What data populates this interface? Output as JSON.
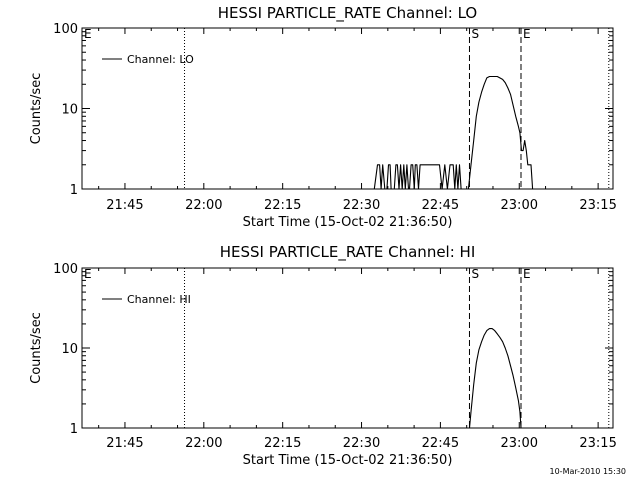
{
  "footer": {
    "timestamp": "10-Mar-2010 15:30"
  },
  "chart_data": [
    {
      "type": "line",
      "title": "HESSI PARTICLE_RATE Channel: LO",
      "xlabel": "Start Time (15-Oct-02 21:36:50)",
      "ylabel": "Counts/sec",
      "x_unit": "minutes since 21:36:50",
      "xlim": [
        0,
        101
      ],
      "ylim": [
        1,
        100
      ],
      "y_scale": "log",
      "x_ticks": [
        {
          "v": 8.17,
          "label": "21:45"
        },
        {
          "v": 23.17,
          "label": "22:00"
        },
        {
          "v": 38.17,
          "label": "22:15"
        },
        {
          "v": 53.17,
          "label": "22:30"
        },
        {
          "v": 68.17,
          "label": "22:45"
        },
        {
          "v": 83.17,
          "label": "23:00"
        },
        {
          "v": 98.17,
          "label": "23:15"
        }
      ],
      "y_ticks": [
        {
          "v": 1,
          "label": "1"
        },
        {
          "v": 10,
          "label": "10"
        },
        {
          "v": 100,
          "label": "100"
        }
      ],
      "legend": {
        "entries": [
          "Channel: LO"
        ],
        "placement": "top-left"
      },
      "markers": [
        {
          "label": "E",
          "x": 0,
          "style": "none"
        },
        {
          "label": "",
          "x": 19.5,
          "style": "dotted"
        },
        {
          "label": "S",
          "x": 73.7,
          "style": "dashed"
        },
        {
          "label": "E",
          "x": 83.5,
          "style": "dashed"
        },
        {
          "label": "",
          "x": 100.2,
          "style": "dotted"
        }
      ],
      "series": [
        {
          "name": "Channel: LO",
          "x": [
            55.0,
            55.6,
            56.2,
            56.6,
            56.9,
            57.2,
            57.6,
            58.0,
            58.3,
            58.6,
            58.8,
            59.1,
            59.4,
            59.7,
            60.0,
            60.3,
            60.6,
            60.9,
            61.2,
            61.5,
            61.8,
            62.1,
            62.3,
            62.6,
            62.9,
            63.2,
            63.4,
            63.7,
            64.0,
            64.3,
            64.5,
            64.8,
            65.1,
            65.4,
            65.7,
            66.0,
            66.5,
            67.0,
            67.5,
            68.0,
            68.5,
            69.0,
            69.5,
            70.0,
            70.3,
            70.6,
            70.9,
            71.2,
            71.5,
            71.8,
            72.1,
            72.5,
            73.0,
            73.5,
            74.0,
            74.5,
            75.0,
            75.5,
            76.0,
            76.5,
            77.0,
            77.5,
            78.0,
            79.0,
            80.0,
            80.5,
            81.0,
            81.5,
            82.0,
            82.5,
            83.0,
            83.3,
            83.6,
            83.9,
            84.2,
            84.5,
            84.8,
            85.1,
            85.4,
            85.7,
            86.0,
            86.3
          ],
          "y": [
            1,
            1,
            2,
            2,
            1,
            2,
            1,
            1,
            2,
            2,
            1,
            1,
            1,
            2,
            2,
            1,
            2,
            1,
            2,
            1,
            2,
            1,
            1,
            2,
            2,
            1,
            2,
            2,
            1,
            2,
            2,
            2,
            2,
            2,
            2,
            2,
            2,
            2,
            2,
            2,
            1,
            2,
            1,
            2,
            2,
            2,
            1,
            2,
            1,
            2,
            1,
            1,
            1,
            1,
            2,
            4,
            8,
            12,
            16,
            20,
            24,
            25,
            25,
            25,
            23,
            21,
            18,
            15,
            11,
            8,
            6,
            5,
            3,
            3,
            4,
            3,
            2,
            2,
            2,
            1,
            1,
            1
          ]
        }
      ]
    },
    {
      "type": "line",
      "title": "HESSI PARTICLE_RATE Channel: HI",
      "xlabel": "Start Time (15-Oct-02 21:36:50)",
      "ylabel": "Counts/sec",
      "x_unit": "minutes since 21:36:50",
      "xlim": [
        0,
        101
      ],
      "ylim": [
        1,
        100
      ],
      "y_scale": "log",
      "x_ticks": [
        {
          "v": 8.17,
          "label": "21:45"
        },
        {
          "v": 23.17,
          "label": "22:00"
        },
        {
          "v": 38.17,
          "label": "22:15"
        },
        {
          "v": 53.17,
          "label": "22:30"
        },
        {
          "v": 68.17,
          "label": "22:45"
        },
        {
          "v": 83.17,
          "label": "23:00"
        },
        {
          "v": 98.17,
          "label": "23:15"
        }
      ],
      "y_ticks": [
        {
          "v": 1,
          "label": "1"
        },
        {
          "v": 10,
          "label": "10"
        },
        {
          "v": 100,
          "label": "100"
        }
      ],
      "legend": {
        "entries": [
          "Channel: HI"
        ],
        "placement": "top-left"
      },
      "markers": [
        {
          "label": "E",
          "x": 0,
          "style": "none"
        },
        {
          "label": "",
          "x": 19.5,
          "style": "dotted"
        },
        {
          "label": "S",
          "x": 73.7,
          "style": "dashed"
        },
        {
          "label": "E",
          "x": 83.5,
          "style": "dashed"
        },
        {
          "label": "",
          "x": 100.2,
          "style": "dotted"
        }
      ],
      "series": [
        {
          "name": "Channel: HI",
          "x": [
            73.7,
            74.0,
            74.5,
            75.0,
            75.5,
            76.0,
            76.5,
            77.0,
            77.5,
            78.0,
            78.5,
            79.0,
            79.5,
            80.0,
            80.5,
            81.0,
            81.5,
            82.0,
            82.5,
            83.0,
            83.3,
            83.5
          ],
          "y": [
            1,
            1.6,
            3.5,
            6.5,
            9.5,
            12,
            14.5,
            16.5,
            17.5,
            17.5,
            16.5,
            15,
            13.5,
            12,
            10,
            8,
            6,
            4.5,
            3.2,
            2.2,
            1.6,
            1
          ]
        }
      ]
    }
  ]
}
